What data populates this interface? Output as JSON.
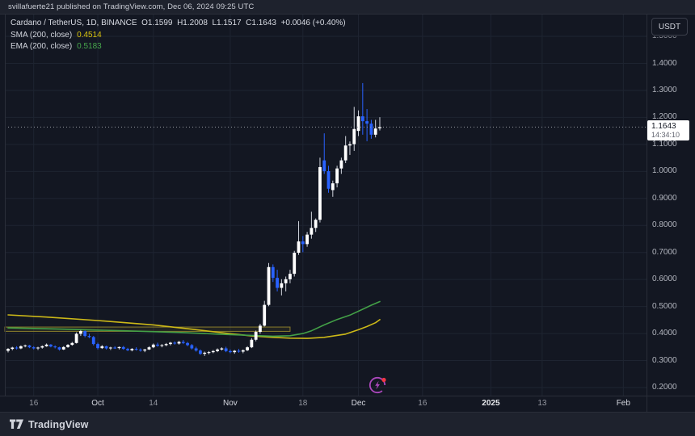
{
  "attribution": {
    "text": "svillafuerte21 published on TradingView.com, Dec 06, 2024 09:25 UTC"
  },
  "legend": {
    "symbol": "Cardano / TetherUS, 1D, BINANCE",
    "ohlc": {
      "o_label": "O",
      "o": "1.1599",
      "h_label": "H",
      "h": "1.2008",
      "l_label": "L",
      "l": "1.1517",
      "c_label": "C",
      "c": "1.1643",
      "change": "+0.0046 (+0.40%)"
    },
    "sma": {
      "label": "SMA (200, close)",
      "value": "0.4514"
    },
    "ema": {
      "label": "EMA (200, close)",
      "value": "0.5183"
    }
  },
  "price_axis": {
    "currency_button": "USDT",
    "labels": [
      "1.4000",
      "1.3000",
      "1.2000",
      "1.1000",
      "1.0000",
      "0.9000",
      "0.8000",
      "0.7000",
      "0.6000",
      "0.5000",
      "0.4000",
      "0.3000",
      "0.2000"
    ],
    "label_values": [
      1.4,
      1.3,
      1.2,
      1.1,
      1.0,
      0.9,
      0.8,
      0.7,
      0.6,
      0.5,
      0.4,
      0.3,
      0.2
    ],
    "clipped_top_label": "1.5000",
    "last_price": {
      "value": "1.1643",
      "countdown": "14:34:10"
    }
  },
  "time_axis": {
    "ticks": [
      {
        "label": "16",
        "index": 6,
        "style": "minor"
      },
      {
        "label": "Oct",
        "index": 21,
        "style": "major"
      },
      {
        "label": "14",
        "index": 34,
        "style": "minor"
      },
      {
        "label": "Nov",
        "index": 52,
        "style": "major"
      },
      {
        "label": "18",
        "index": 69,
        "style": "minor"
      },
      {
        "label": "Dec",
        "index": 82,
        "style": "major"
      },
      {
        "label": "16",
        "index": 97,
        "style": "minor"
      },
      {
        "label": "2025",
        "index": 113,
        "style": "year"
      },
      {
        "label": "13",
        "index": 125,
        "style": "minor"
      },
      {
        "label": "Feb",
        "index": 144,
        "style": "major"
      }
    ]
  },
  "footer": {
    "brand": "TradingView"
  },
  "colors": {
    "background": "#131722",
    "panel": "#1e222d",
    "grid": "#1e2431",
    "border": "#2a2e39",
    "text_primary": "#d1d4dc",
    "text_secondary": "#9598a1",
    "up_body": "#ffffff",
    "up_wick": "#cfd3dc",
    "down_body": "#2962ff",
    "down_wick": "#2962ff",
    "sma_line": "#cdb918",
    "ema_line": "#43a047",
    "zone_border": "#8a7d2b",
    "zone_fill": "rgba(138,125,43,0.12)",
    "price_line": "#9598a1",
    "spark_purple": "#ab47bc",
    "spark_dot": "#f23645"
  },
  "chart_data": {
    "type": "candlestick",
    "symbol": "ADAUSDT",
    "exchange": "BINANCE",
    "timeframe": "1D",
    "visible_price_range": [
      0.2,
      1.5
    ],
    "grid_prices": [
      0.2,
      0.3,
      0.4,
      0.5,
      0.6,
      0.7,
      0.8,
      0.9,
      1.0,
      1.1,
      1.2,
      1.3,
      1.4,
      1.5
    ],
    "current_price": 1.1643,
    "countdown": "14:34:10",
    "dates": [
      "2024-09-10",
      "2024-09-11",
      "2024-09-12",
      "2024-09-13",
      "2024-09-14",
      "2024-09-15",
      "2024-09-16",
      "2024-09-17",
      "2024-09-18",
      "2024-09-19",
      "2024-09-20",
      "2024-09-21",
      "2024-09-22",
      "2024-09-23",
      "2024-09-24",
      "2024-09-25",
      "2024-09-26",
      "2024-09-27",
      "2024-09-28",
      "2024-09-29",
      "2024-09-30",
      "2024-10-01",
      "2024-10-02",
      "2024-10-03",
      "2024-10-04",
      "2024-10-05",
      "2024-10-06",
      "2024-10-07",
      "2024-10-08",
      "2024-10-09",
      "2024-10-10",
      "2024-10-11",
      "2024-10-12",
      "2024-10-13",
      "2024-10-14",
      "2024-10-15",
      "2024-10-16",
      "2024-10-17",
      "2024-10-18",
      "2024-10-19",
      "2024-10-20",
      "2024-10-21",
      "2024-10-22",
      "2024-10-23",
      "2024-10-24",
      "2024-10-25",
      "2024-10-26",
      "2024-10-27",
      "2024-10-28",
      "2024-10-29",
      "2024-10-30",
      "2024-10-31",
      "2024-11-01",
      "2024-11-02",
      "2024-11-03",
      "2024-11-04",
      "2024-11-05",
      "2024-11-06",
      "2024-11-07",
      "2024-11-08",
      "2024-11-09",
      "2024-11-10",
      "2024-11-11",
      "2024-11-12",
      "2024-11-13",
      "2024-11-14",
      "2024-11-15",
      "2024-11-16",
      "2024-11-17",
      "2024-11-18",
      "2024-11-19",
      "2024-11-20",
      "2024-11-21",
      "2024-11-22",
      "2024-11-23",
      "2024-11-24",
      "2024-11-25",
      "2024-11-26",
      "2024-11-27",
      "2024-11-28",
      "2024-11-29",
      "2024-11-30",
      "2024-12-01",
      "2024-12-02",
      "2024-12-03",
      "2024-12-04",
      "2024-12-05",
      "2024-12-06"
    ],
    "candles": [
      [
        0.336,
        0.346,
        0.33,
        0.343
      ],
      [
        0.343,
        0.351,
        0.338,
        0.348
      ],
      [
        0.348,
        0.353,
        0.341,
        0.345
      ],
      [
        0.345,
        0.356,
        0.342,
        0.353
      ],
      [
        0.353,
        0.359,
        0.349,
        0.356
      ],
      [
        0.356,
        0.358,
        0.346,
        0.349
      ],
      [
        0.349,
        0.353,
        0.341,
        0.345
      ],
      [
        0.345,
        0.351,
        0.339,
        0.348
      ],
      [
        0.348,
        0.356,
        0.344,
        0.353
      ],
      [
        0.353,
        0.363,
        0.351,
        0.359
      ],
      [
        0.359,
        0.361,
        0.349,
        0.352
      ],
      [
        0.352,
        0.356,
        0.345,
        0.349
      ],
      [
        0.349,
        0.351,
        0.337,
        0.341
      ],
      [
        0.341,
        0.353,
        0.339,
        0.35
      ],
      [
        0.35,
        0.361,
        0.347,
        0.358
      ],
      [
        0.358,
        0.369,
        0.355,
        0.365
      ],
      [
        0.365,
        0.404,
        0.363,
        0.399
      ],
      [
        0.399,
        0.413,
        0.391,
        0.409
      ],
      [
        0.409,
        0.411,
        0.386,
        0.391
      ],
      [
        0.391,
        0.399,
        0.383,
        0.387
      ],
      [
        0.387,
        0.391,
        0.356,
        0.361
      ],
      [
        0.361,
        0.366,
        0.341,
        0.346
      ],
      [
        0.346,
        0.357,
        0.343,
        0.353
      ],
      [
        0.353,
        0.355,
        0.341,
        0.345
      ],
      [
        0.345,
        0.351,
        0.339,
        0.348
      ],
      [
        0.348,
        0.353,
        0.343,
        0.346
      ],
      [
        0.346,
        0.352,
        0.341,
        0.35
      ],
      [
        0.35,
        0.354,
        0.34,
        0.343
      ],
      [
        0.343,
        0.347,
        0.335,
        0.338
      ],
      [
        0.338,
        0.346,
        0.334,
        0.343
      ],
      [
        0.343,
        0.349,
        0.337,
        0.34
      ],
      [
        0.34,
        0.345,
        0.333,
        0.337
      ],
      [
        0.337,
        0.343,
        0.331,
        0.341
      ],
      [
        0.341,
        0.353,
        0.339,
        0.349
      ],
      [
        0.349,
        0.363,
        0.346,
        0.359
      ],
      [
        0.359,
        0.366,
        0.351,
        0.355
      ],
      [
        0.355,
        0.361,
        0.349,
        0.357
      ],
      [
        0.357,
        0.365,
        0.353,
        0.361
      ],
      [
        0.361,
        0.369,
        0.356,
        0.366
      ],
      [
        0.366,
        0.371,
        0.359,
        0.363
      ],
      [
        0.363,
        0.373,
        0.359,
        0.369
      ],
      [
        0.369,
        0.376,
        0.361,
        0.365
      ],
      [
        0.365,
        0.369,
        0.353,
        0.357
      ],
      [
        0.357,
        0.361,
        0.341,
        0.345
      ],
      [
        0.345,
        0.351,
        0.333,
        0.337
      ],
      [
        0.337,
        0.341,
        0.321,
        0.325
      ],
      [
        0.325,
        0.333,
        0.317,
        0.329
      ],
      [
        0.329,
        0.335,
        0.323,
        0.331
      ],
      [
        0.331,
        0.339,
        0.327,
        0.335
      ],
      [
        0.335,
        0.345,
        0.331,
        0.341
      ],
      [
        0.341,
        0.349,
        0.337,
        0.345
      ],
      [
        0.345,
        0.351,
        0.331,
        0.335
      ],
      [
        0.335,
        0.341,
        0.327,
        0.331
      ],
      [
        0.331,
        0.339,
        0.325,
        0.336
      ],
      [
        0.336,
        0.343,
        0.329,
        0.333
      ],
      [
        0.333,
        0.341,
        0.327,
        0.338
      ],
      [
        0.338,
        0.353,
        0.335,
        0.349
      ],
      [
        0.349,
        0.383,
        0.346,
        0.377
      ],
      [
        0.377,
        0.411,
        0.371,
        0.406
      ],
      [
        0.406,
        0.436,
        0.399,
        0.429
      ],
      [
        0.429,
        0.521,
        0.426,
        0.506
      ],
      [
        0.506,
        0.661,
        0.501,
        0.646
      ],
      [
        0.646,
        0.656,
        0.591,
        0.606
      ],
      [
        0.606,
        0.636,
        0.556,
        0.569
      ],
      [
        0.569,
        0.601,
        0.541,
        0.586
      ],
      [
        0.586,
        0.611,
        0.556,
        0.601
      ],
      [
        0.601,
        0.636,
        0.586,
        0.621
      ],
      [
        0.621,
        0.706,
        0.611,
        0.699
      ],
      [
        0.699,
        0.816,
        0.691,
        0.741
      ],
      [
        0.741,
        0.761,
        0.701,
        0.731
      ],
      [
        0.731,
        0.776,
        0.721,
        0.766
      ],
      [
        0.766,
        0.851,
        0.751,
        0.791
      ],
      [
        0.791,
        0.826,
        0.776,
        0.821
      ],
      [
        0.821,
        1.051,
        0.811,
        1.016
      ],
      [
        1.041,
        1.141,
        0.991,
        1.001
      ],
      [
        1.001,
        1.021,
        0.921,
        0.936
      ],
      [
        0.931,
        0.966,
        0.906,
        0.956
      ],
      [
        0.956,
        1.021,
        0.941,
        1.011
      ],
      [
        1.011,
        1.051,
        0.991,
        1.041
      ],
      [
        1.041,
        1.131,
        1.031,
        1.096
      ],
      [
        1.096,
        1.111,
        1.061,
        1.101
      ],
      [
        1.101,
        1.239,
        1.076,
        1.157
      ],
      [
        1.15,
        1.226,
        1.131,
        1.204
      ],
      [
        1.204,
        1.327,
        1.136,
        1.186
      ],
      [
        1.186,
        1.231,
        1.112,
        1.177
      ],
      [
        1.177,
        1.191,
        1.121,
        1.136
      ],
      [
        1.136,
        1.191,
        1.126,
        1.159
      ],
      [
        1.1599,
        1.2008,
        1.1517,
        1.1643
      ]
    ],
    "overlays": [
      {
        "name": "SMA 200",
        "last_value": 0.4514,
        "color": "#cdb918",
        "points": [
          [
            0,
            0.469
          ],
          [
            9,
            0.461
          ],
          [
            21,
            0.448
          ],
          [
            34,
            0.432
          ],
          [
            43,
            0.416
          ],
          [
            51,
            0.401
          ],
          [
            57,
            0.391
          ],
          [
            62,
            0.386
          ],
          [
            66,
            0.383
          ],
          [
            70,
            0.382
          ],
          [
            74,
            0.386
          ],
          [
            79,
            0.398
          ],
          [
            82,
            0.414
          ],
          [
            84,
            0.426
          ],
          [
            86,
            0.44
          ],
          [
            87,
            0.4514
          ]
        ]
      },
      {
        "name": "EMA 200",
        "last_value": 0.5183,
        "color": "#43a047",
        "points": [
          [
            0,
            0.421
          ],
          [
            13,
            0.416
          ],
          [
            27,
            0.41
          ],
          [
            40,
            0.404
          ],
          [
            49,
            0.398
          ],
          [
            57,
            0.393
          ],
          [
            62,
            0.39
          ],
          [
            66,
            0.392
          ],
          [
            69,
            0.4
          ],
          [
            71,
            0.41
          ],
          [
            74,
            0.432
          ],
          [
            77,
            0.452
          ],
          [
            80,
            0.468
          ],
          [
            83,
            0.49
          ],
          [
            85,
            0.505
          ],
          [
            87,
            0.5183
          ]
        ]
      }
    ],
    "annotations": [
      {
        "type": "zone_rectangle",
        "index_start": -1,
        "index_end": 66,
        "price_top": 0.424,
        "price_bottom": 0.408
      },
      {
        "type": "current_price_line",
        "price": 1.1643
      }
    ]
  }
}
